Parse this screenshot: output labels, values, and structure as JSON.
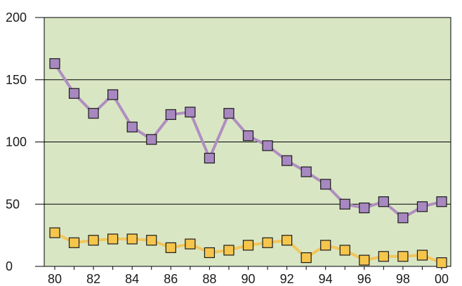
{
  "chart_data": {
    "type": "line",
    "title": "",
    "xlabel": "",
    "ylabel": "",
    "x": [
      1980,
      1981,
      1982,
      1983,
      1984,
      1985,
      1986,
      1987,
      1988,
      1989,
      1990,
      1991,
      1992,
      1993,
      1994,
      1995,
      1996,
      1997,
      1998,
      1999,
      2000
    ],
    "x_tick_labels": [
      "80",
      "82",
      "84",
      "86",
      "88",
      "90",
      "92",
      "94",
      "96",
      "98",
      "00"
    ],
    "x_tick_values": [
      1980,
      1982,
      1984,
      1986,
      1988,
      1990,
      1992,
      1994,
      1996,
      1998,
      2000
    ],
    "y_tick_labels": [
      "0",
      "50",
      "100",
      "150",
      "200"
    ],
    "y_tick_values": [
      0,
      50,
      100,
      150,
      200
    ],
    "ylim": [
      0,
      200
    ],
    "grid": "horizontal",
    "plot_background": "#d9e6c4",
    "series": [
      {
        "color": "#b08ec0",
        "marker_color": "#a888c0",
        "values": [
          163,
          139,
          123,
          138,
          112,
          102,
          122,
          124,
          87,
          123,
          105,
          97,
          85,
          76,
          66,
          50,
          47,
          52,
          39,
          48,
          52
        ]
      },
      {
        "color": "#f2c65a",
        "marker_color": "#f5c54c",
        "values": [
          27,
          19,
          21,
          22,
          22,
          21,
          15,
          18,
          11,
          13,
          17,
          19,
          21,
          7,
          17,
          13,
          5,
          8,
          8,
          9,
          3
        ]
      }
    ]
  }
}
